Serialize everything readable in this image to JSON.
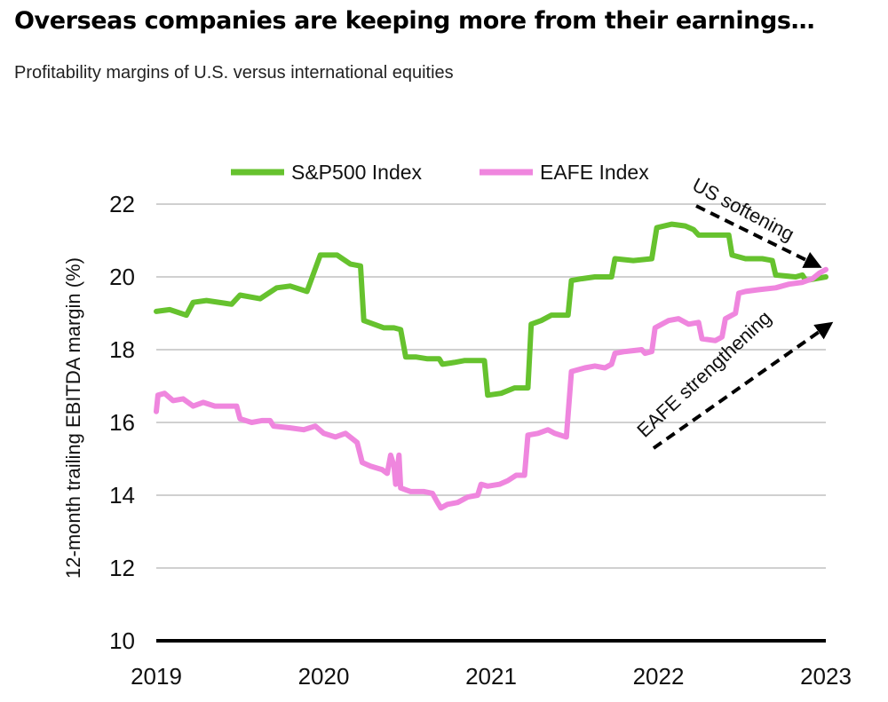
{
  "header": {
    "title": "Overseas companies are keeping more from their earnings…",
    "subtitle": "Profitability margins of U.S. versus international equities"
  },
  "colors": {
    "sp500": "#66c22e",
    "eafe": "#ef86de",
    "grid": "#d0d0d0",
    "baseline": "#000000",
    "arrow": "#000000"
  },
  "chart_data": {
    "type": "line",
    "ylabel": "12-month trailing  EBITDA margin (%)",
    "xlabel": "",
    "xlim": [
      2019,
      2023
    ],
    "ylim": [
      10,
      22
    ],
    "x_ticks": [
      "2019",
      "2020",
      "2021",
      "2022",
      "2023"
    ],
    "y_ticks": [
      "10",
      "12",
      "14",
      "16",
      "18",
      "20",
      "22"
    ],
    "grid": "horizontal",
    "legend_position": "top",
    "annotations": [
      "US softening",
      "EAFE strengthening"
    ],
    "series": [
      {
        "name": "S&P500 Index",
        "color": "#66c22e",
        "points": [
          [
            2019.0,
            19.05
          ],
          [
            2019.08,
            19.1
          ],
          [
            2019.18,
            18.95
          ],
          [
            2019.22,
            19.3
          ],
          [
            2019.3,
            19.35
          ],
          [
            2019.45,
            19.25
          ],
          [
            2019.5,
            19.5
          ],
          [
            2019.62,
            19.4
          ],
          [
            2019.72,
            19.7
          ],
          [
            2019.8,
            19.75
          ],
          [
            2019.9,
            19.6
          ],
          [
            2019.98,
            20.6
          ],
          [
            2020.08,
            20.6
          ],
          [
            2020.16,
            20.35
          ],
          [
            2020.22,
            20.3
          ],
          [
            2020.24,
            18.8
          ],
          [
            2020.3,
            18.7
          ],
          [
            2020.36,
            18.6
          ],
          [
            2020.42,
            18.6
          ],
          [
            2020.46,
            18.55
          ],
          [
            2020.49,
            17.8
          ],
          [
            2020.55,
            17.8
          ],
          [
            2020.62,
            17.75
          ],
          [
            2020.69,
            17.75
          ],
          [
            2020.71,
            17.6
          ],
          [
            2020.78,
            17.65
          ],
          [
            2020.84,
            17.7
          ],
          [
            2020.96,
            17.7
          ],
          [
            2020.98,
            16.75
          ],
          [
            2021.06,
            16.8
          ],
          [
            2021.14,
            16.95
          ],
          [
            2021.22,
            16.95
          ],
          [
            2021.24,
            18.7
          ],
          [
            2021.3,
            18.8
          ],
          [
            2021.36,
            18.95
          ],
          [
            2021.46,
            18.95
          ],
          [
            2021.48,
            19.9
          ],
          [
            2021.54,
            19.95
          ],
          [
            2021.62,
            20.0
          ],
          [
            2021.72,
            20.0
          ],
          [
            2021.74,
            20.5
          ],
          [
            2021.85,
            20.45
          ],
          [
            2021.96,
            20.5
          ],
          [
            2021.99,
            21.35
          ],
          [
            2022.08,
            21.45
          ],
          [
            2022.16,
            21.4
          ],
          [
            2022.21,
            21.3
          ],
          [
            2022.24,
            21.15
          ],
          [
            2022.3,
            21.15
          ],
          [
            2022.38,
            21.15
          ],
          [
            2022.42,
            21.15
          ],
          [
            2022.44,
            20.6
          ],
          [
            2022.52,
            20.5
          ],
          [
            2022.62,
            20.5
          ],
          [
            2022.68,
            20.45
          ],
          [
            2022.7,
            20.05
          ],
          [
            2022.82,
            20.0
          ],
          [
            2022.86,
            20.05
          ],
          [
            2022.88,
            19.9
          ],
          [
            2022.94,
            19.95
          ],
          [
            2023.0,
            20.0
          ]
        ]
      },
      {
        "name": "EAFE Index",
        "color": "#ef86de",
        "points": [
          [
            2019.0,
            16.3
          ],
          [
            2019.01,
            16.75
          ],
          [
            2019.05,
            16.8
          ],
          [
            2019.1,
            16.6
          ],
          [
            2019.16,
            16.65
          ],
          [
            2019.22,
            16.45
          ],
          [
            2019.28,
            16.55
          ],
          [
            2019.35,
            16.45
          ],
          [
            2019.48,
            16.45
          ],
          [
            2019.5,
            16.1
          ],
          [
            2019.57,
            16.0
          ],
          [
            2019.63,
            16.05
          ],
          [
            2019.68,
            16.05
          ],
          [
            2019.7,
            15.9
          ],
          [
            2019.8,
            15.85
          ],
          [
            2019.88,
            15.8
          ],
          [
            2019.95,
            15.9
          ],
          [
            2020.0,
            15.7
          ],
          [
            2020.07,
            15.6
          ],
          [
            2020.13,
            15.7
          ],
          [
            2020.2,
            15.45
          ],
          [
            2020.23,
            14.9
          ],
          [
            2020.28,
            14.8
          ],
          [
            2020.35,
            14.7
          ],
          [
            2020.38,
            14.6
          ],
          [
            2020.4,
            15.1
          ],
          [
            2020.42,
            14.8
          ],
          [
            2020.43,
            14.3
          ],
          [
            2020.45,
            15.1
          ],
          [
            2020.46,
            14.2
          ],
          [
            2020.52,
            14.1
          ],
          [
            2020.6,
            14.1
          ],
          [
            2020.65,
            14.05
          ],
          [
            2020.68,
            13.8
          ],
          [
            2020.7,
            13.65
          ],
          [
            2020.74,
            13.75
          ],
          [
            2020.8,
            13.8
          ],
          [
            2020.86,
            13.95
          ],
          [
            2020.92,
            14.0
          ],
          [
            2020.94,
            14.3
          ],
          [
            2020.98,
            14.25
          ],
          [
            2021.05,
            14.3
          ],
          [
            2021.1,
            14.4
          ],
          [
            2021.15,
            14.55
          ],
          [
            2021.2,
            14.55
          ],
          [
            2021.22,
            15.65
          ],
          [
            2021.28,
            15.7
          ],
          [
            2021.34,
            15.8
          ],
          [
            2021.38,
            15.7
          ],
          [
            2021.45,
            15.6
          ],
          [
            2021.48,
            17.4
          ],
          [
            2021.56,
            17.5
          ],
          [
            2021.62,
            17.55
          ],
          [
            2021.68,
            17.5
          ],
          [
            2021.72,
            17.6
          ],
          [
            2021.74,
            17.9
          ],
          [
            2021.8,
            17.95
          ],
          [
            2021.9,
            18.0
          ],
          [
            2021.92,
            17.9
          ],
          [
            2021.96,
            17.95
          ],
          [
            2021.98,
            18.6
          ],
          [
            2022.06,
            18.8
          ],
          [
            2022.12,
            18.85
          ],
          [
            2022.18,
            18.7
          ],
          [
            2022.24,
            18.75
          ],
          [
            2022.26,
            18.3
          ],
          [
            2022.34,
            18.25
          ],
          [
            2022.38,
            18.35
          ],
          [
            2022.4,
            18.85
          ],
          [
            2022.46,
            19.0
          ],
          [
            2022.48,
            19.55
          ],
          [
            2022.52,
            19.6
          ],
          [
            2022.6,
            19.65
          ],
          [
            2022.7,
            19.7
          ],
          [
            2022.78,
            19.8
          ],
          [
            2022.86,
            19.85
          ],
          [
            2022.92,
            19.95
          ],
          [
            2022.96,
            20.1
          ],
          [
            2023.0,
            20.2
          ]
        ]
      }
    ]
  }
}
